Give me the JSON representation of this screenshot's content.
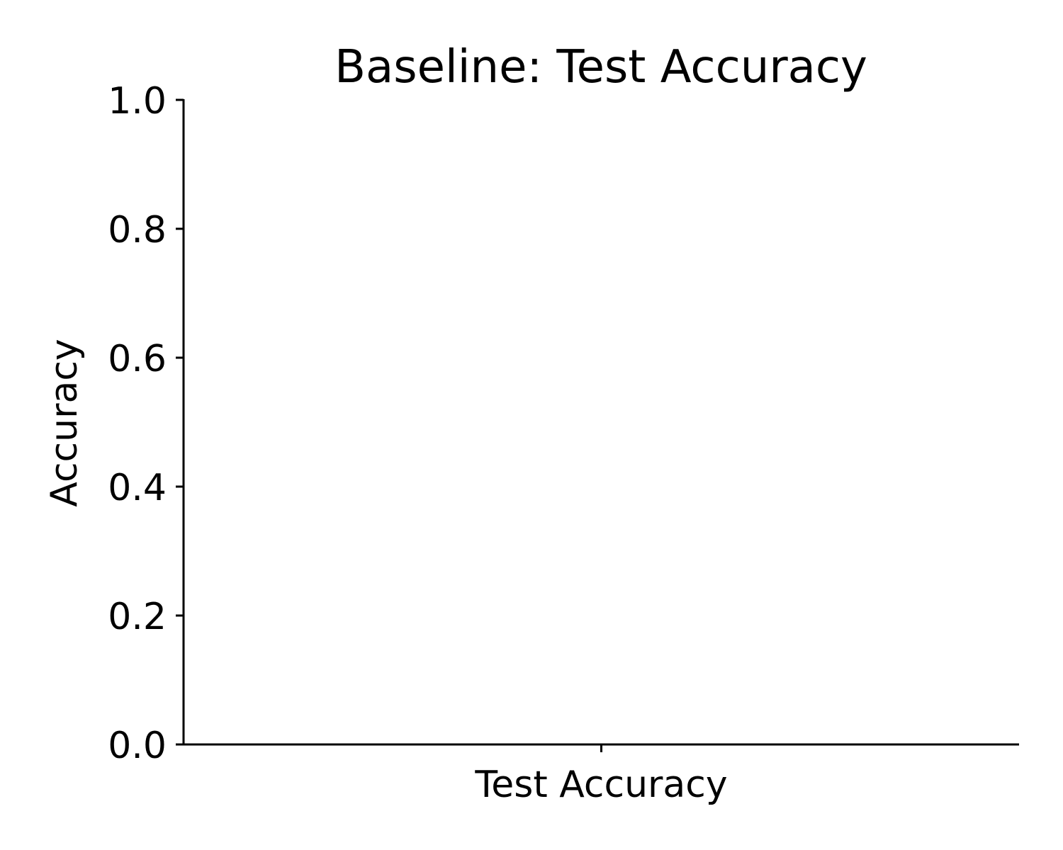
{
  "chart_data": {
    "type": "bar",
    "title": "Baseline: Test Accuracy",
    "xlabel": "",
    "ylabel": "Accuracy",
    "categories": [
      "Test Accuracy"
    ],
    "values": [
      null
    ],
    "ylim": [
      0,
      1.0
    ],
    "yticks": [
      "0.0",
      "0.2",
      "0.4",
      "0.6",
      "0.8",
      "1.0"
    ],
    "grid": false,
    "legend": "none"
  }
}
